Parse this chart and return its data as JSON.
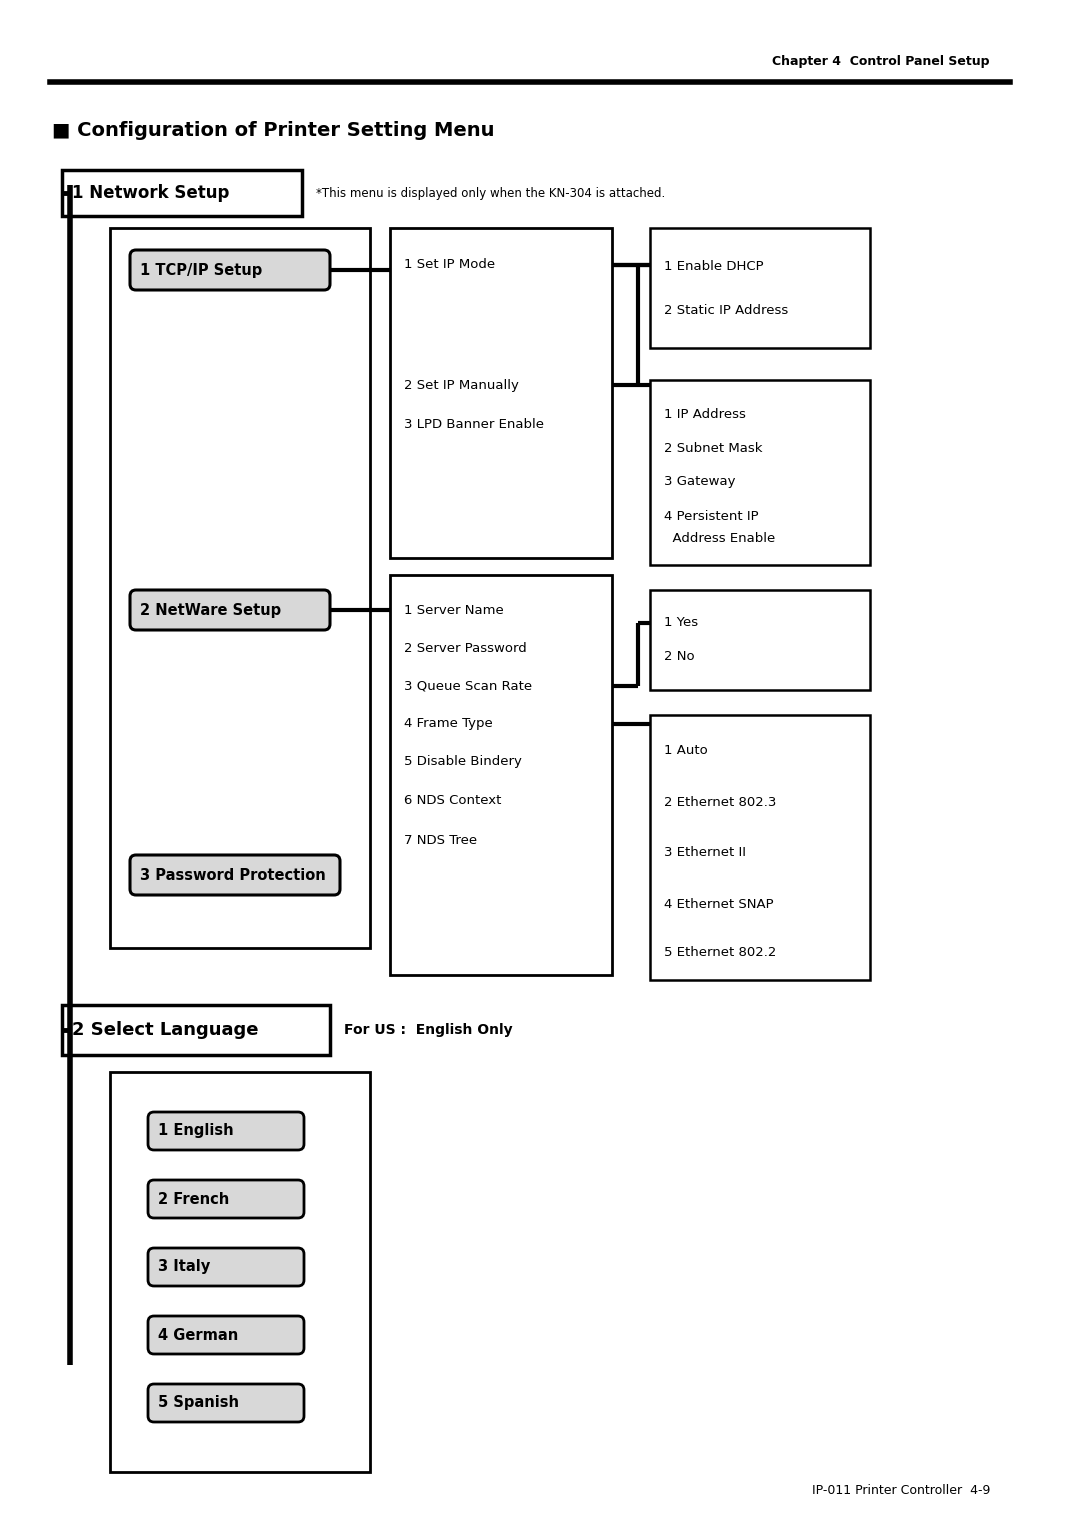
{
  "page_title": "Chapter 4  Control Panel Setup",
  "section_title": "■ Configuration of Printer Setting Menu",
  "footer": "IP-011 Printer Controller  4-9",
  "bg_color": "#ffffff",
  "network_setup_label": "1 Network Setup",
  "network_note": "*This menu is displayed only when the KN-304 is attached.",
  "tcp_label": "1 TCP/IP Setup",
  "netware_label": "2 NetWare Setup",
  "password_label": "3 Password Protection",
  "select_lang_label": "2 Select Language",
  "select_lang_note": "For US :  English Only",
  "tcp_items": [
    "1 Set IP Mode",
    "2 Set IP Manually",
    "3 LPD Banner Enable"
  ],
  "netware_items": [
    "1 Server Name",
    "2 Server Password",
    "3 Queue Scan Rate",
    "4 Frame Type",
    "5 Disable Bindery",
    "6 NDS Context",
    "7 NDS Tree"
  ],
  "dhcp_items": [
    "1 Enable DHCP",
    "2 Static IP Address"
  ],
  "ip_items": [
    "1 IP Address",
    "2 Subnet Mask",
    "3 Gateway",
    "4 Persistent IP",
    "  Address Enable"
  ],
  "yesno_items": [
    "1 Yes",
    "2 No"
  ],
  "frame_items": [
    "1 Auto",
    "2 Ethernet 802.3",
    "3 Ethernet II",
    "4 Ethernet SNAP",
    "5 Ethernet 802.2"
  ],
  "lang_items": [
    "1 English",
    "2 French",
    "3 Italy",
    "4 German",
    "5 Spanish"
  ]
}
